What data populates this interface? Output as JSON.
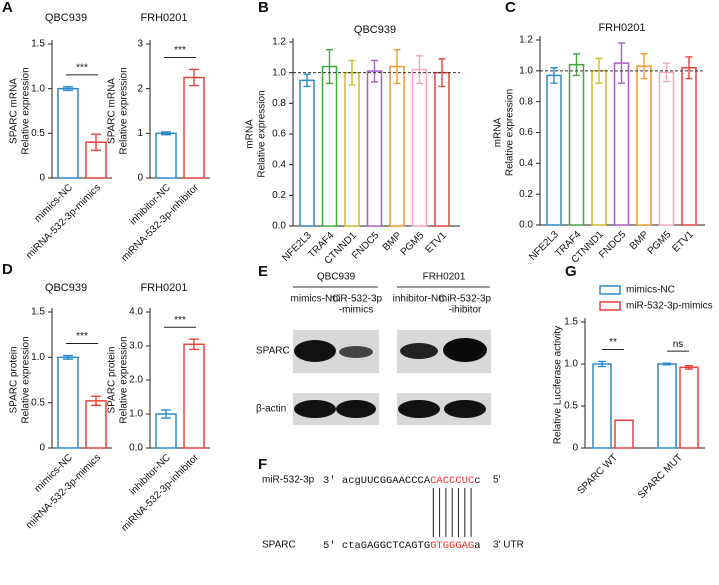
{
  "panel_letters": [
    "A",
    "B",
    "C",
    "D",
    "E",
    "F",
    "G"
  ],
  "chart_data": [
    {
      "type": "bar",
      "title": "QBC939",
      "ylabel": [
        "SPARC mRNA",
        "Relative expression"
      ],
      "categories": [
        "mimics-NC",
        "miRNA-532-3p-mimics"
      ],
      "values": [
        1.0,
        0.4
      ],
      "errors": [
        0.02,
        0.09
      ],
      "colors": [
        "#2e8bc9",
        "#e8433a"
      ],
      "ylim": [
        0,
        1.5
      ],
      "yticks": [
        0,
        0.5,
        {
          "value": 1,
          "label": "1.0"
        },
        1.5
      ],
      "significance": "***"
    },
    {
      "type": "bar",
      "title": "FRH0201",
      "ylabel": [
        "SPARC mRNA",
        "Relative expression"
      ],
      "categories": [
        "inhibitor-NC",
        "miRNA-532-3p-inhibitor"
      ],
      "values": [
        1.0,
        2.25
      ],
      "errors": [
        0.03,
        0.18
      ],
      "colors": [
        "#2e8bc9",
        "#e8433a"
      ],
      "ylim": [
        0,
        3
      ],
      "yticks": [
        0,
        1,
        2,
        3
      ],
      "significance": "***"
    },
    {
      "type": "bar",
      "title": "QBC939",
      "ylabel": [
        "mRNA",
        "Relative expression"
      ],
      "categories": [
        "NFE2L3",
        "TRAF4",
        "CTNND1",
        "FNDC5",
        "BMP",
        "PGM5",
        "ETV1"
      ],
      "values": [
        0.95,
        1.04,
        1.0,
        1.01,
        1.04,
        1.02,
        1.0
      ],
      "errors": [
        0.04,
        0.11,
        0.08,
        0.07,
        0.11,
        0.09,
        0.09
      ],
      "colors": [
        "#2e8bc9",
        "#3fa83f",
        "#cdbb2a",
        "#a65fc5",
        "#f29a2e",
        "#f4a6c4",
        "#e8433a"
      ],
      "ylim": [
        0,
        1.2
      ],
      "yticks": [
        {
          "value": 0,
          "label": "0.0"
        },
        0.2,
        0.4,
        0.6,
        0.8,
        {
          "value": 1,
          "label": "1.0"
        },
        1.2
      ],
      "reference_line": 1
    },
    {
      "type": "bar",
      "title": "FRH0201",
      "ylabel": [
        "mRNA",
        "Relative expression"
      ],
      "categories": [
        "NFE2L3",
        "TRAF4",
        "CTNND1",
        "FNDC5",
        "BMP",
        "PGM5",
        "ETV1"
      ],
      "values": [
        0.97,
        1.04,
        1.0,
        1.05,
        1.03,
        0.99,
        1.02
      ],
      "errors": [
        0.05,
        0.07,
        0.08,
        0.13,
        0.08,
        0.06,
        0.07
      ],
      "colors": [
        "#2e8bc9",
        "#3fa83f",
        "#cdbb2a",
        "#a65fc5",
        "#f29a2e",
        "#f4a6c4",
        "#e8433a"
      ],
      "ylim": [
        0,
        1.2
      ],
      "yticks": [
        {
          "value": 0,
          "label": "0.0"
        },
        0.2,
        0.4,
        0.6,
        0.8,
        {
          "value": 1,
          "label": "1.0"
        },
        1.2
      ],
      "reference_line": 1
    },
    {
      "type": "bar",
      "title": "QBC939",
      "ylabel": [
        "SPARC protein",
        "Relative expression"
      ],
      "categories": [
        "mimics-NC",
        "miRNA-532-3p-mimics"
      ],
      "values": [
        1.0,
        0.52
      ],
      "errors": [
        0.02,
        0.05
      ],
      "colors": [
        "#2e8bc9",
        "#e8433a"
      ],
      "ylim": [
        0,
        1.5
      ],
      "yticks": [
        0,
        0.5,
        {
          "value": 1,
          "label": "1.0"
        },
        1.5
      ],
      "significance": "***"
    },
    {
      "type": "bar",
      "title": "FRH0201",
      "ylabel": [
        "SPARC protein",
        "Relative expression"
      ],
      "categories": [
        "inhibitor-NC",
        "miRNA-532-3p-inhibitor"
      ],
      "values": [
        1.0,
        3.05
      ],
      "errors": [
        0.12,
        0.15
      ],
      "colors": [
        "#2e8bc9",
        "#e8433a"
      ],
      "ylim": [
        0,
        4
      ],
      "yticks": [
        {
          "value": 0,
          "label": "0.0"
        },
        {
          "value": 1,
          "label": "1.0"
        },
        {
          "value": 2,
          "label": "2.0"
        },
        {
          "value": 3,
          "label": "3.0"
        },
        {
          "value": 4,
          "label": "4.0"
        }
      ],
      "significance": "***"
    },
    {
      "type": "grouped_bar",
      "ylabel": [
        "Relative Luciferase activity"
      ],
      "categories": [
        "SPARC WT",
        "SPARC MUT"
      ],
      "series": [
        {
          "name": "mimics-NC",
          "color": "#2e8bc9",
          "values": [
            1.0,
            1.0
          ],
          "errors": [
            0.03,
            0.01
          ]
        },
        {
          "name": "miR-532-3p-mimics",
          "color": "#e8433a",
          "values": [
            0.33,
            0.96
          ],
          "errors": [
            0,
            0.02
          ]
        }
      ],
      "ylim": [
        0,
        1.5
      ],
      "yticks": [
        0,
        0.5,
        {
          "value": 1,
          "label": "1.0"
        },
        1.5
      ],
      "significance": [
        "**",
        "ns"
      ]
    }
  ],
  "blot": {
    "groups": [
      "QBC939",
      "FRH0201"
    ],
    "columns": [
      [
        "mimics-NC"
      ],
      [
        "miR-532-3p",
        "-mimics"
      ],
      [
        "inhibitor-NC"
      ],
      [
        "miR-532-3p",
        "-ihibitor"
      ]
    ],
    "rows": [
      "SPARC",
      "β-actin"
    ]
  },
  "sequence": {
    "mirna": {
      "name": "miR-532-3p",
      "start": "3' acgUUCGGAACCCA",
      "seed": "CACCCUC",
      "tail": "c",
      "end": "5'"
    },
    "target": {
      "name": "SPARC",
      "start": "5' ctaGAGGCTCAGTG",
      "seed": "GTGGGAG",
      "tail": "a",
      "end": "3' UTR"
    }
  }
}
